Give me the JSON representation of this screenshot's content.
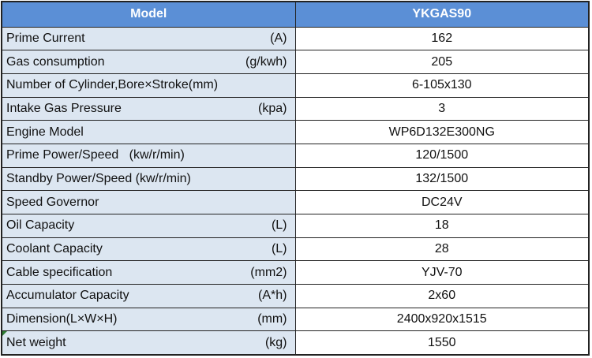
{
  "table": {
    "header": [
      "Model",
      "YKGAS90"
    ],
    "rows": [
      {
        "label": "Prime Current",
        "unit": "(A)",
        "value": "162"
      },
      {
        "label": "Gas consumption",
        "unit": "(g/kwh)",
        "value": "205"
      },
      {
        "label": "Number of Cylinder,Bore×Stroke(mm)",
        "value": "6-105x130"
      },
      {
        "label": "Intake Gas Pressure",
        "unit": "(kpa)",
        "value": "3"
      },
      {
        "label": "Engine Model",
        "value": "WP6D132E300NG"
      },
      {
        "label": "Prime Power/Speed   (kw/r/min)",
        "value": "120/1500"
      },
      {
        "label": "Standby Power/Speed (kw/r/min)",
        "value": "132/1500"
      },
      {
        "label": "Speed Governor",
        "value": "DC24V"
      },
      {
        "label": "Oil Capacity",
        "unit": "(L)",
        "value": "18"
      },
      {
        "label": "Coolant Capacity",
        "unit": "(L)",
        "value": "28"
      },
      {
        "label": "Cable specification",
        "unit": "(mm2)",
        "value": "YJV-70"
      },
      {
        "label": "Accumulator Capacity",
        "unit": "(A*h)",
        "value": "2x60"
      },
      {
        "label": "Dimension(L×W×H)",
        "unit": "(mm)",
        "value": "2400x920x1515"
      },
      {
        "label": "Net weight",
        "unit": "(kg)",
        "value": "1550"
      }
    ]
  }
}
